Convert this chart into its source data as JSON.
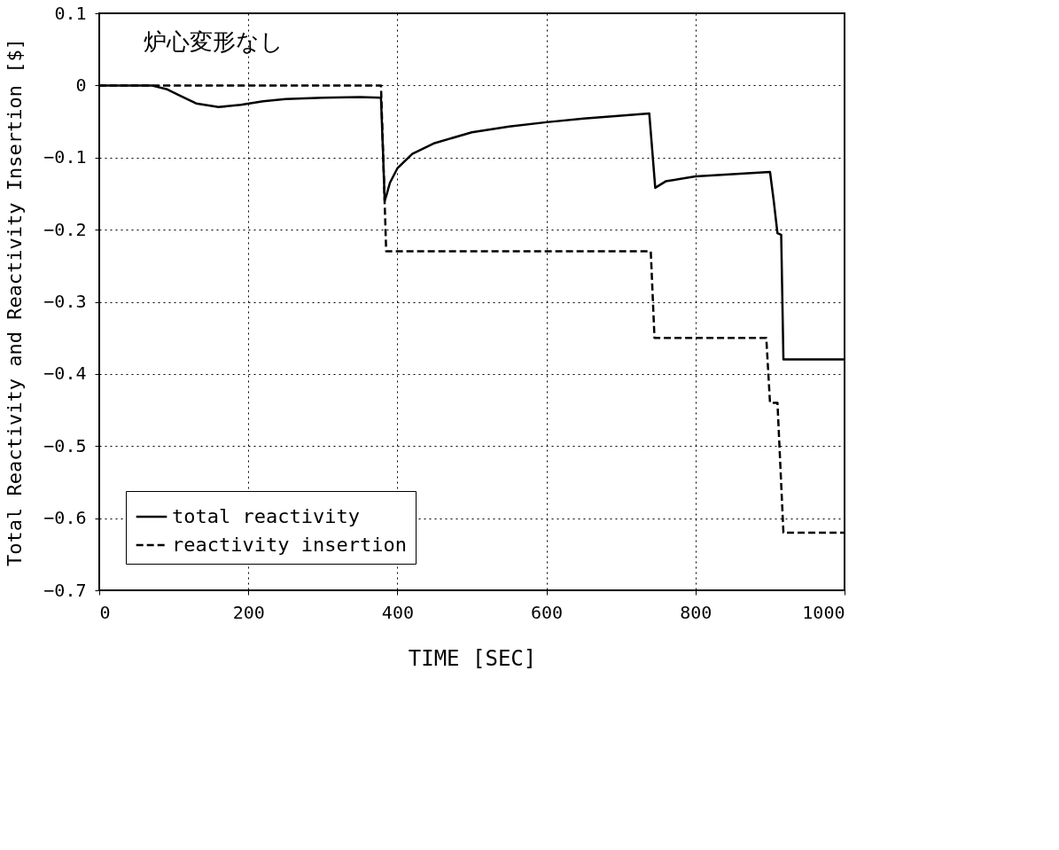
{
  "chart_data": {
    "type": "line",
    "xlabel": "TIME [SEC]",
    "ylabel": "Total Reactivity and Reactivity Insertion [$]",
    "annotations": [
      "炉心変形なし"
    ],
    "xlim": [
      0,
      1000
    ],
    "xticks": [
      0,
      200,
      400,
      600,
      800,
      1000
    ],
    "ylim": [
      -0.7,
      0.1
    ],
    "yticks": [
      -0.7,
      -0.6,
      -0.5,
      -0.4,
      -0.3,
      -0.2,
      -0.1,
      0,
      0.1
    ],
    "grid": true,
    "legend": "bottom left",
    "marker": "none",
    "series": [
      {
        "name": "total reactivity",
        "color": "#000000",
        "line_style": "solid",
        "x": [
          0,
          70,
          90,
          110,
          130,
          160,
          190,
          220,
          250,
          300,
          350,
          378,
          381,
          383,
          386,
          390,
          400,
          420,
          450,
          500,
          550,
          600,
          650,
          700,
          738,
          742,
          746,
          760,
          800,
          850,
          900,
          905,
          910,
          915,
          918,
          1000
        ],
        "values": [
          0,
          0,
          -0.005,
          -0.015,
          -0.025,
          -0.03,
          -0.027,
          -0.022,
          -0.019,
          -0.017,
          -0.016,
          -0.017,
          -0.1,
          -0.16,
          -0.15,
          -0.135,
          -0.115,
          -0.095,
          -0.08,
          -0.065,
          -0.057,
          -0.051,
          -0.046,
          -0.042,
          -0.039,
          -0.09,
          -0.142,
          -0.133,
          -0.126,
          -0.123,
          -0.12,
          -0.16,
          -0.205,
          -0.207,
          -0.38,
          -0.38
        ]
      },
      {
        "name": "reactivity insertion",
        "color": "#000000",
        "line_style": "dashed",
        "x": [
          0,
          378,
          385,
          740,
          745,
          895,
          900,
          910,
          918,
          1000
        ],
        "values": [
          0,
          0,
          -0.23,
          -0.23,
          -0.35,
          -0.35,
          -0.44,
          -0.44,
          -0.62,
          -0.62
        ]
      }
    ]
  }
}
